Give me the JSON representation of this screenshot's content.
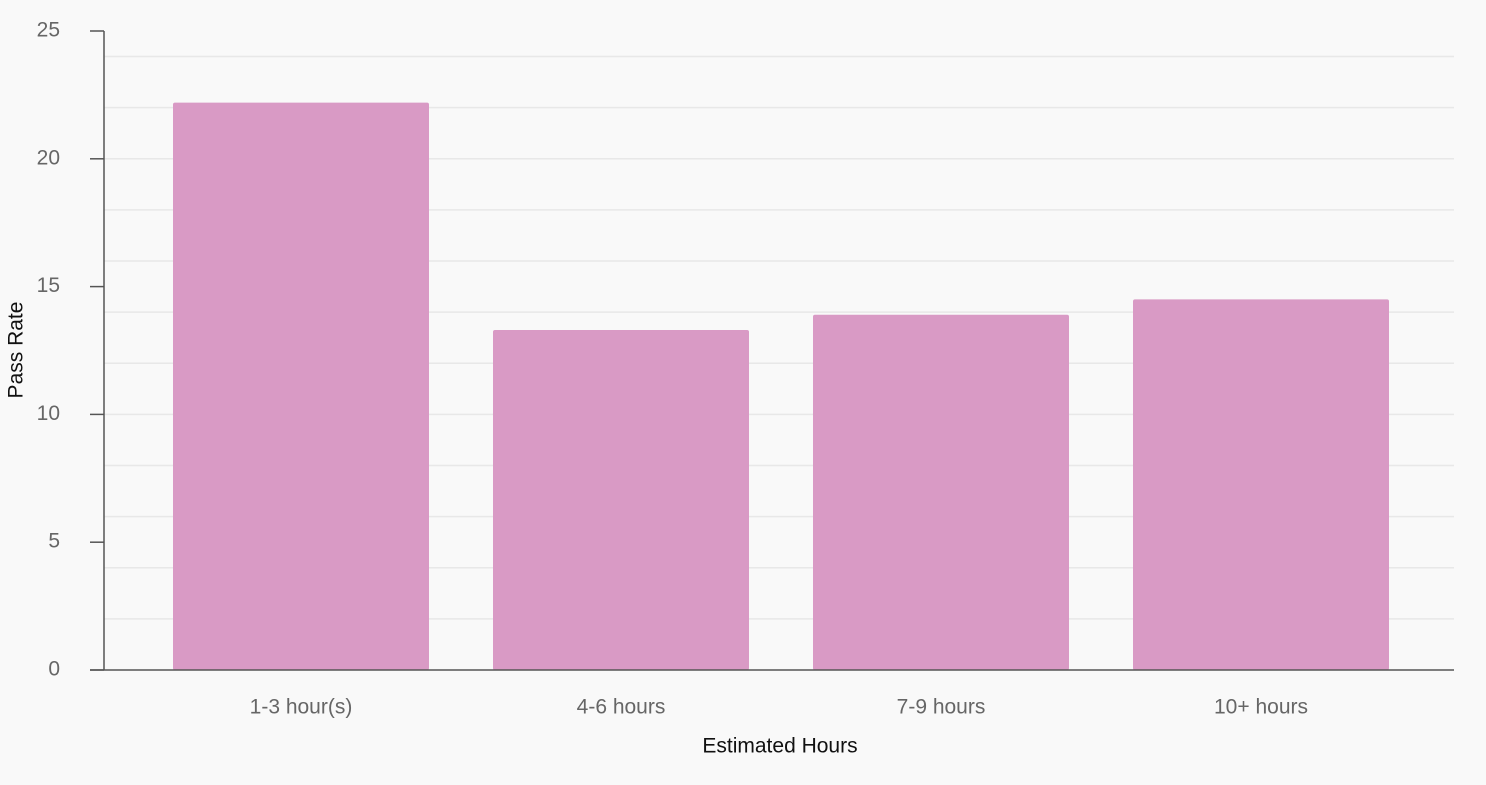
{
  "chart_data": {
    "type": "bar",
    "x_label": "Estimated Hours",
    "y_label": "Pass Rate",
    "categories": [
      "1-3 hour(s)",
      "4-6 hours",
      "7-9 hours",
      "10+ hours"
    ],
    "values": [
      22.2,
      13.3,
      13.9,
      14.5
    ],
    "color": "#d99ac5",
    "ylim": [
      0,
      25
    ],
    "yticks": [
      0,
      5,
      10,
      15,
      20,
      25
    ],
    "ygrid": [
      2,
      4,
      6,
      8,
      10,
      12,
      14,
      16,
      18,
      20,
      22,
      24
    ],
    "grid": true
  }
}
